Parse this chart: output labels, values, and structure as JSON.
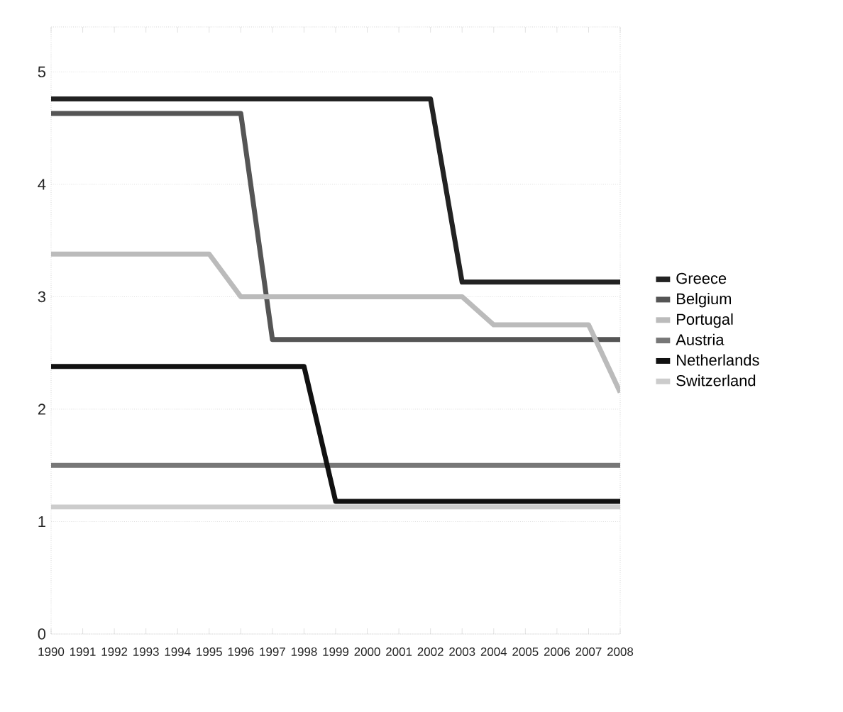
{
  "chart_data": {
    "type": "line",
    "x": [
      1990,
      1991,
      1992,
      1993,
      1994,
      1995,
      1996,
      1997,
      1998,
      1999,
      2000,
      2001,
      2002,
      2003,
      2004,
      2005,
      2006,
      2007,
      2008
    ],
    "xlim": [
      1990,
      2008
    ],
    "xticks": [
      1990,
      1991,
      1992,
      1993,
      1994,
      1995,
      1996,
      1997,
      1998,
      1999,
      2000,
      2001,
      2002,
      2003,
      2004,
      2005,
      2006,
      2007,
      2008
    ],
    "ylim": [
      0,
      5.4
    ],
    "yticks": [
      0,
      1,
      2,
      3,
      4,
      5
    ],
    "grid": "y",
    "legend": "right",
    "line_style": "solid",
    "marker": "none",
    "series": [
      {
        "name": "Greece",
        "color": "#222222",
        "values": [
          4.76,
          4.76,
          4.76,
          4.76,
          4.76,
          4.76,
          4.76,
          4.76,
          4.76,
          4.76,
          4.76,
          4.76,
          4.76,
          3.13,
          3.13,
          3.13,
          3.13,
          3.13,
          3.13
        ]
      },
      {
        "name": "Belgium",
        "color": "#555555",
        "values": [
          4.63,
          4.63,
          4.63,
          4.63,
          4.63,
          4.63,
          4.63,
          2.62,
          2.62,
          2.62,
          2.62,
          2.62,
          2.62,
          2.62,
          2.62,
          2.62,
          2.62,
          2.62,
          2.62
        ]
      },
      {
        "name": "Portugal",
        "color": "#bbbbbb",
        "values": [
          3.38,
          3.38,
          3.38,
          3.38,
          3.38,
          3.38,
          3.0,
          3.0,
          3.0,
          3.0,
          3.0,
          3.0,
          3.0,
          3.0,
          2.75,
          2.75,
          2.75,
          2.75,
          2.15
        ]
      },
      {
        "name": "Austria",
        "color": "#777777",
        "values": [
          1.5,
          1.5,
          1.5,
          1.5,
          1.5,
          1.5,
          1.5,
          1.5,
          1.5,
          1.5,
          1.5,
          1.5,
          1.5,
          1.5,
          1.5,
          1.5,
          1.5,
          1.5,
          1.5
        ]
      },
      {
        "name": "Netherlands",
        "color": "#111111",
        "values": [
          2.38,
          2.38,
          2.38,
          2.38,
          2.38,
          2.38,
          2.38,
          2.38,
          2.38,
          1.18,
          1.18,
          1.18,
          1.18,
          1.18,
          1.18,
          1.18,
          1.18,
          1.18,
          1.18
        ]
      },
      {
        "name": "Switzerland",
        "color": "#cccccc",
        "values": [
          1.13,
          1.13,
          1.13,
          1.13,
          1.13,
          1.13,
          1.13,
          1.13,
          1.13,
          1.13,
          1.13,
          1.13,
          1.13,
          1.13,
          1.13,
          1.13,
          1.13,
          1.13,
          1.13
        ]
      }
    ]
  }
}
